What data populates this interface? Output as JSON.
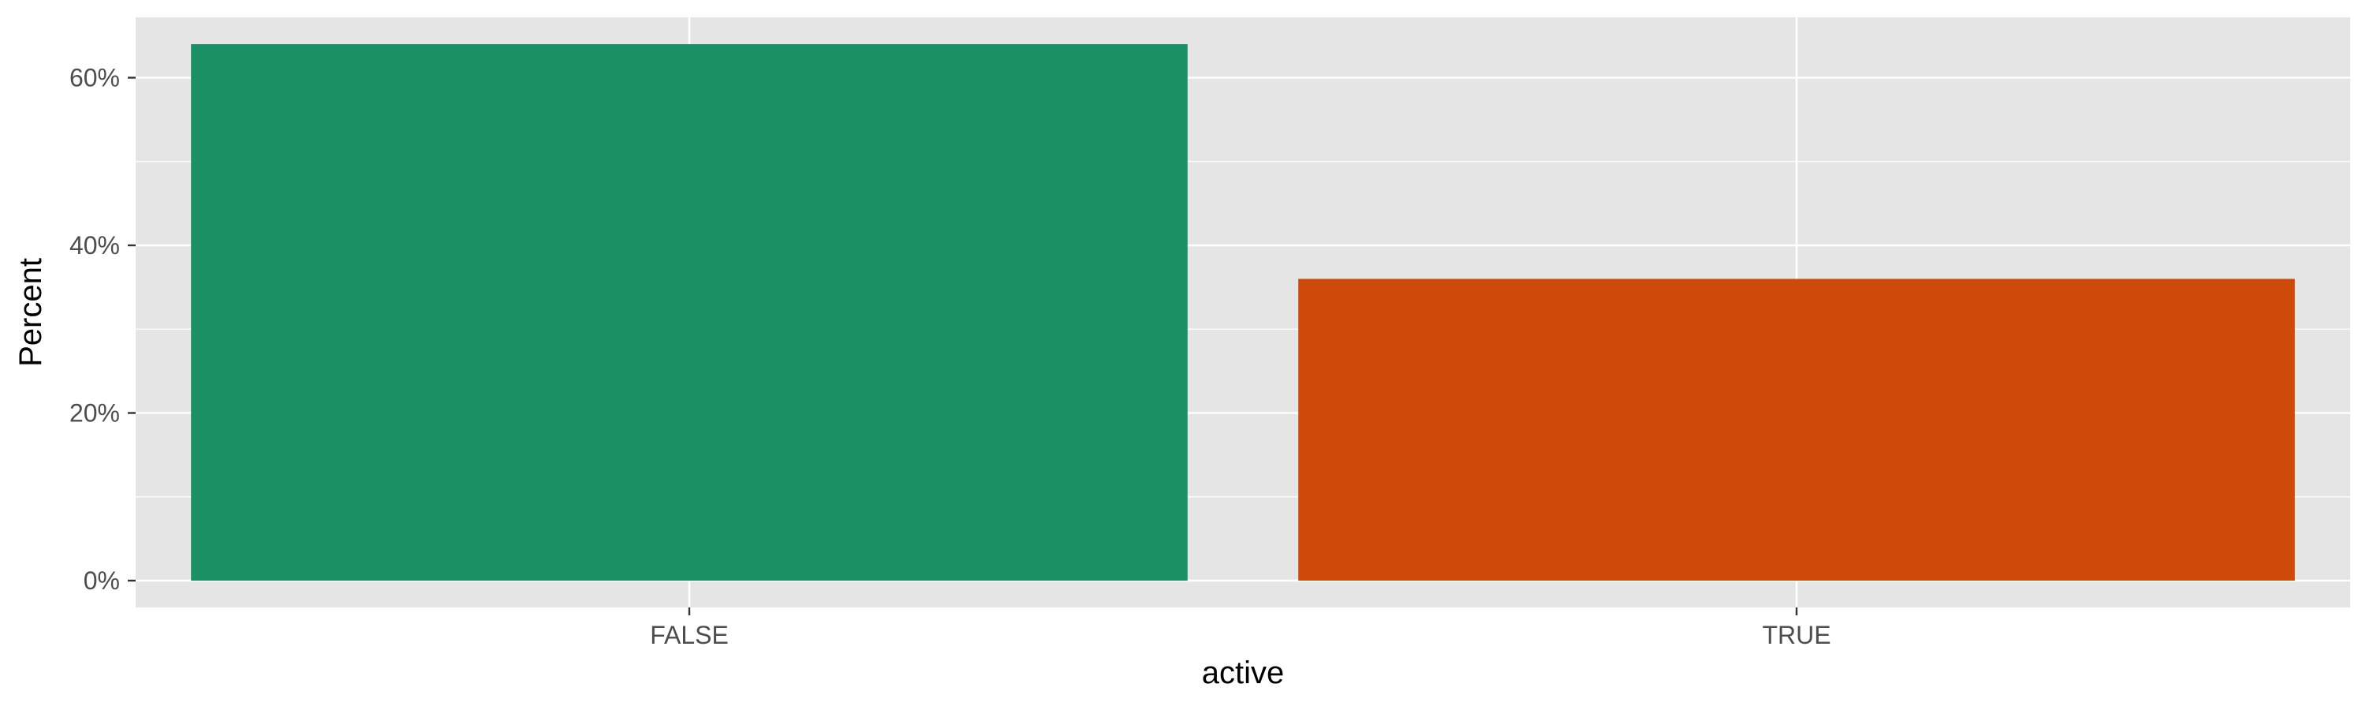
{
  "chart_data": {
    "type": "bar",
    "categories": [
      "FALSE",
      "TRUE"
    ],
    "values": [
      64,
      36
    ],
    "value_unit": "percent",
    "colors": [
      "#1b9066",
      "#cd4a0a"
    ],
    "title": "",
    "xlabel": "active",
    "ylabel": "Percent",
    "ylim": [
      -3.2,
      67.2
    ],
    "yticks": [
      0,
      20,
      40,
      60
    ],
    "ytick_labels": [
      "0%",
      "20%",
      "40%",
      "60%"
    ],
    "grid": true,
    "panel_background": "#e5e5e5",
    "grid_color": "#ffffff",
    "tick_color": "#333333"
  }
}
